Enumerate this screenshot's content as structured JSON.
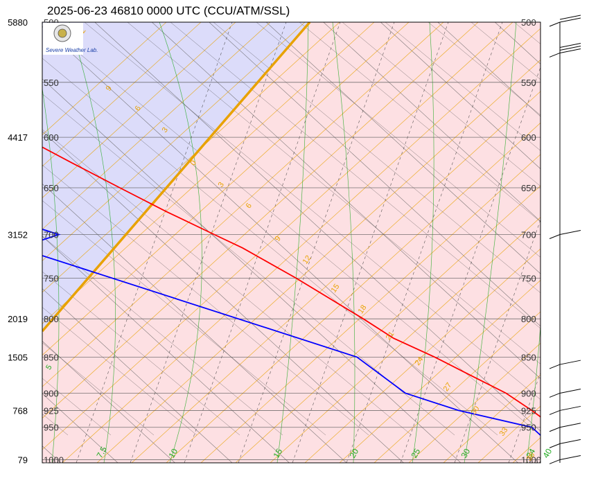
{
  "title": "2025-06-23 46810 0000 UTC (CCU/ATM/SSL)",
  "logo": {
    "text": "Severe Weather Lab."
  },
  "colors": {
    "stable_fill": "#fde0e3",
    "unstable_fill": "#dcdcfa",
    "temperature": "#ff0000",
    "dewpoint": "#0000ff",
    "divider": "#e8a200",
    "isotherm": "#555555",
    "mixing_ratio": "#e8a200",
    "dry_adiabat": "#333333",
    "moist_adiabat": "#22aa22",
    "isobar": "#555555"
  },
  "chart_data": {
    "type": "skew-t",
    "title": "2025-06-23 46810 0000 UTC (CCU/ATM/SSL)",
    "pressure_levels_hpa": [
      500,
      550,
      600,
      650,
      700,
      750,
      800,
      850,
      900,
      925,
      950,
      1000
    ],
    "pressure_labels_left": [
      "500",
      "550",
      "600",
      "650",
      "700",
      "750",
      "800",
      "850",
      "900",
      "925",
      "950",
      "1000"
    ],
    "pressure_labels_right": [
      "500",
      "550",
      "600",
      "650",
      "700",
      "750",
      "800",
      "850",
      "900",
      "925",
      "950",
      "1000"
    ],
    "height_labels": [
      {
        "p": 500,
        "text": "5880"
      },
      {
        "p": 600,
        "text": "4417"
      },
      {
        "p": 700,
        "text": "3152"
      },
      {
        "p": 800,
        "text": "2019"
      },
      {
        "p": 850,
        "text": "1505"
      },
      {
        "p": 925,
        "text": "768"
      },
      {
        "p": 1000,
        "text": "79"
      }
    ],
    "isotherm_labels_bottom": [
      {
        "t": 7.5,
        "text": "7.5"
      },
      {
        "t": 10,
        "text": "10"
      },
      {
        "t": 15,
        "text": "15"
      },
      {
        "t": 20,
        "text": "20"
      },
      {
        "t": 25,
        "text": "25"
      },
      {
        "t": 30,
        "text": "30"
      },
      {
        "t": 34,
        "text": "34"
      },
      {
        "t": 40,
        "text": "40"
      }
    ],
    "green_labels_left": [
      {
        "p": 522,
        "text": "2.5"
      },
      {
        "p": 868,
        "text": "5"
      }
    ],
    "orange_labels": [
      {
        "p": 512,
        "text": "12"
      },
      {
        "p": 558,
        "text": "9"
      },
      {
        "p": 576,
        "text": "6"
      },
      {
        "p": 596,
        "text": "3"
      },
      {
        "p": 628,
        "text": "0"
      },
      {
        "p": 650,
        "text": "3"
      },
      {
        "p": 672,
        "text": "6"
      },
      {
        "p": 708,
        "text": "9"
      },
      {
        "p": 734,
        "text": "12"
      },
      {
        "p": 768,
        "text": "15"
      },
      {
        "p": 794,
        "text": "18"
      },
      {
        "p": 828,
        "text": "21"
      },
      {
        "p": 862,
        "text": "24"
      },
      {
        "p": 898,
        "text": "27"
      },
      {
        "p": 932,
        "text": "30"
      },
      {
        "p": 964,
        "text": "33"
      },
      {
        "p": 1003,
        "text": "36"
      }
    ],
    "temperature_profile": [
      {
        "p": 500,
        "t": -6.4
      },
      {
        "p": 525,
        "t": -4.2
      },
      {
        "p": 550,
        "t": -2.0
      },
      {
        "p": 575,
        "t": 0.6
      },
      {
        "p": 600,
        "t": 2.8
      },
      {
        "p": 625,
        "t": 4.6
      },
      {
        "p": 650,
        "t": 6.4
      },
      {
        "p": 675,
        "t": 8.2
      },
      {
        "p": 700,
        "t": 10.2
      },
      {
        "p": 715,
        "t": 11.4
      },
      {
        "p": 750,
        "t": 13.2
      },
      {
        "p": 800,
        "t": 15.2
      },
      {
        "p": 825,
        "t": 16.0
      },
      {
        "p": 850,
        "t": 17.8
      },
      {
        "p": 875,
        "t": 19.2
      },
      {
        "p": 900,
        "t": 20.6
      },
      {
        "p": 925,
        "t": 21.2
      },
      {
        "p": 950,
        "t": 21.6
      },
      {
        "p": 975,
        "t": 23.6
      },
      {
        "p": 1000,
        "t": 25.6
      },
      {
        "p": 1004,
        "t": 27.8
      }
    ],
    "dewpoint_profile": [
      {
        "p": 510,
        "t": -38.0
      },
      {
        "p": 550,
        "t": -26.0
      },
      {
        "p": 563,
        "t": -22.0
      },
      {
        "p": 600,
        "t": -35.0
      },
      {
        "p": 620,
        "t": -33.5
      },
      {
        "p": 648,
        "t": -5.6
      },
      {
        "p": 660,
        "t": -10.0
      },
      {
        "p": 700,
        "t": -3.4
      },
      {
        "p": 715,
        "t": -8.2
      },
      {
        "p": 850,
        "t": 11.0
      },
      {
        "p": 900,
        "t": 11.8
      },
      {
        "p": 925,
        "t": 14.8
      },
      {
        "p": 950,
        "t": 19.6
      },
      {
        "p": 1000,
        "t": 19.6
      },
      {
        "p": 1004,
        "t": 20.6
      }
    ],
    "wind_barbs": [
      {
        "p": 500,
        "speed_kt": 20
      },
      {
        "p": 525,
        "speed_kt": 25
      },
      {
        "p": 700,
        "speed_kt": 5
      },
      {
        "p": 860,
        "speed_kt": 5
      },
      {
        "p": 900,
        "speed_kt": 10
      },
      {
        "p": 925,
        "speed_kt": 10
      },
      {
        "p": 950,
        "speed_kt": 10
      },
      {
        "p": 975,
        "speed_kt": 10
      },
      {
        "p": 1000,
        "speed_kt": 10
      }
    ]
  }
}
